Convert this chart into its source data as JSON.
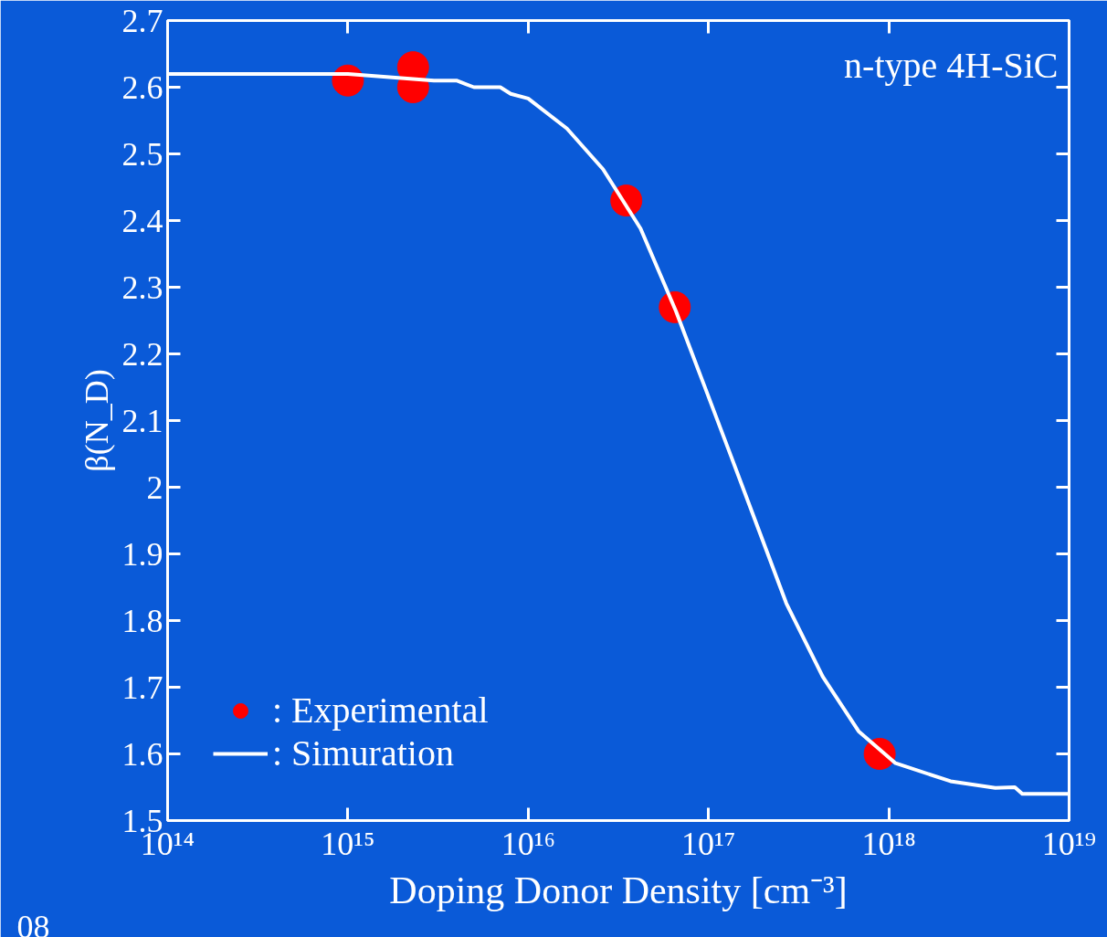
{
  "chart_data": {
    "type": "scatter",
    "xlabel": "Doping Donor Density [cm⁻³]",
    "ylabel": "β(N_D)",
    "log": "x",
    "xlim": [
      100000000000000.0,
      1e+19
    ],
    "xticks": [
      {
        "value": 100000000000000.0,
        "label": "10¹⁴"
      },
      {
        "value": 1000000000000000.0,
        "label": "10¹⁵"
      },
      {
        "value": 1e+16,
        "label": "10¹⁶"
      },
      {
        "value": 1e+17,
        "label": "10¹⁷"
      },
      {
        "value": 1e+18,
        "label": "10¹⁸"
      },
      {
        "value": 1e+19,
        "label": "10¹⁹"
      }
    ],
    "ylim": [
      1.5,
      2.7
    ],
    "yticks": [
      1.5,
      1.6,
      1.7,
      1.8,
      1.9,
      2,
      2.1,
      2.2,
      2.3,
      2.4,
      2.5,
      2.6,
      2.7
    ],
    "grid": false,
    "legend": "bottom left",
    "annotations": [
      "n-type 4H-SiC",
      "08"
    ],
    "series": [
      {
        "name": ": Experimental",
        "marker": "circle",
        "color": "#ff0000",
        "x": [
          1000000000000000.0,
          2300000000000000.0,
          2300000000000000.0,
          3.5e+16,
          6.5e+16,
          8.9e+17
        ],
        "values": [
          2.61,
          2.63,
          2.6,
          2.43,
          2.27,
          1.6
        ]
      },
      {
        "name": ": Simuration",
        "type": "line",
        "line_style": "solid",
        "color": "#ffffff",
        "x": [
          100000000000000.0,
          1000000000000000.0,
          3000000000000000.0,
          4000000000000000.0,
          5000000000000000.0,
          7000000000000000.0,
          8000000000000000.0,
          1e+16,
          1.64e+16,
          2.6e+16,
          4.2e+16,
          6.6e+16,
          9.4e+16,
          1.34e+17,
          1.9e+17,
          2.7e+17,
          4.3e+17,
          6.8e+17,
          1.09e+18,
          2.2e+18,
          3.9e+18,
          5e+18,
          5.5e+18,
          1e+19
        ],
        "values": [
          2.62,
          2.62,
          2.61,
          2.61,
          2.6,
          2.6,
          2.59,
          2.583,
          2.538,
          2.477,
          2.388,
          2.264,
          2.155,
          2.045,
          1.936,
          1.826,
          1.716,
          1.634,
          1.586,
          1.559,
          1.549,
          1.55,
          1.54,
          1.54
        ]
      }
    ]
  }
}
